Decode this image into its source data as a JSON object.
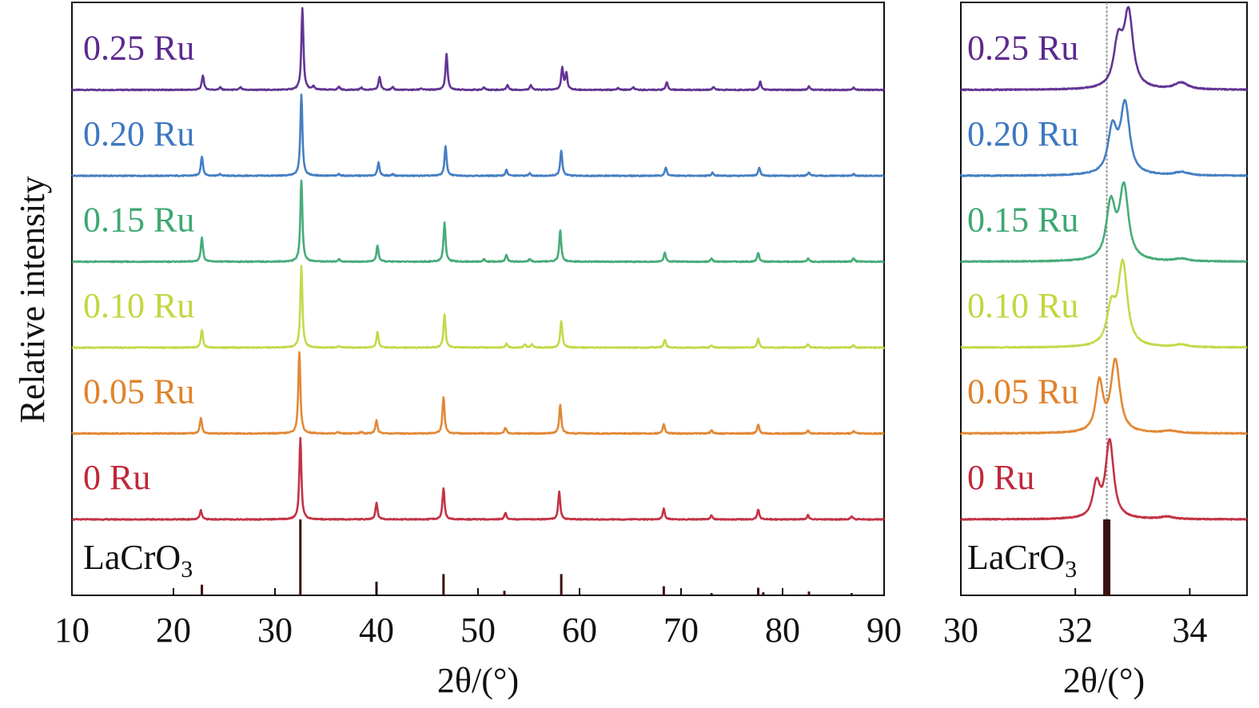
{
  "ylabel": "Relative intensity",
  "chart_data": [
    {
      "type": "line",
      "panel": "full-range",
      "xlabel": "2θ/(°)",
      "ylabel": "Relative intensity",
      "xlim": [
        10,
        90
      ],
      "xticks": [
        10,
        20,
        30,
        40,
        50,
        60,
        70,
        80,
        90
      ],
      "grid": false,
      "series": [
        {
          "name": "0.25 Ru",
          "color": "#5B2A8E",
          "peaks": [
            [
              22.9,
              0.18
            ],
            [
              24.6,
              0.03
            ],
            [
              26.6,
              0.03
            ],
            [
              32.7,
              1.0
            ],
            [
              33.8,
              0.04
            ],
            [
              36.3,
              0.04
            ],
            [
              38.5,
              0.03
            ],
            [
              40.3,
              0.16
            ],
            [
              41.6,
              0.03
            ],
            [
              44.4,
              0.02
            ],
            [
              46.9,
              0.44
            ],
            [
              50.6,
              0.03
            ],
            [
              52.9,
              0.06
            ],
            [
              55.2,
              0.06
            ],
            [
              58.3,
              0.27
            ],
            [
              58.7,
              0.2
            ],
            [
              63.8,
              0.02
            ],
            [
              65.3,
              0.03
            ],
            [
              68.6,
              0.09
            ],
            [
              73.2,
              0.04
            ],
            [
              77.8,
              0.1
            ],
            [
              82.6,
              0.04
            ],
            [
              87.0,
              0.03
            ]
          ]
        },
        {
          "name": "0.20 Ru",
          "color": "#3C78C0",
          "peaks": [
            [
              22.8,
              0.24
            ],
            [
              24.6,
              0.02
            ],
            [
              32.6,
              1.0
            ],
            [
              36.3,
              0.02
            ],
            [
              40.2,
              0.16
            ],
            [
              41.6,
              0.02
            ],
            [
              46.8,
              0.36
            ],
            [
              52.8,
              0.07
            ],
            [
              55.1,
              0.03
            ],
            [
              58.2,
              0.31
            ],
            [
              68.5,
              0.1
            ],
            [
              73.1,
              0.04
            ],
            [
              77.7,
              0.1
            ],
            [
              82.6,
              0.04
            ],
            [
              87.0,
              0.02
            ]
          ]
        },
        {
          "name": "0.15 Ru",
          "color": "#3DA872",
          "peaks": [
            [
              22.8,
              0.3
            ],
            [
              32.6,
              1.0
            ],
            [
              36.3,
              0.03
            ],
            [
              40.1,
              0.2
            ],
            [
              46.7,
              0.48
            ],
            [
              50.6,
              0.03
            ],
            [
              52.8,
              0.08
            ],
            [
              55.1,
              0.03
            ],
            [
              58.1,
              0.38
            ],
            [
              68.4,
              0.11
            ],
            [
              73.0,
              0.04
            ],
            [
              77.6,
              0.11
            ],
            [
              82.5,
              0.04
            ],
            [
              87.0,
              0.04
            ]
          ]
        },
        {
          "name": "0.10 Ru",
          "color": "#C3D640",
          "peaks": [
            [
              22.8,
              0.22
            ],
            [
              32.6,
              1.0
            ],
            [
              36.3,
              0.02
            ],
            [
              40.1,
              0.19
            ],
            [
              46.7,
              0.41
            ],
            [
              52.8,
              0.05
            ],
            [
              54.6,
              0.04
            ],
            [
              55.3,
              0.04
            ],
            [
              58.2,
              0.33
            ],
            [
              68.4,
              0.1
            ],
            [
              73.0,
              0.03
            ],
            [
              77.6,
              0.11
            ],
            [
              82.5,
              0.04
            ],
            [
              87.0,
              0.03
            ]
          ]
        },
        {
          "name": "0.05 Ru",
          "color": "#E0822A",
          "peaks": [
            [
              22.7,
              0.19
            ],
            [
              32.4,
              1.0
            ],
            [
              36.2,
              0.02
            ],
            [
              38.5,
              0.02
            ],
            [
              40.0,
              0.16
            ],
            [
              46.6,
              0.45
            ],
            [
              52.7,
              0.07
            ],
            [
              58.1,
              0.35
            ],
            [
              68.3,
              0.12
            ],
            [
              73.0,
              0.04
            ],
            [
              77.6,
              0.11
            ],
            [
              82.5,
              0.04
            ],
            [
              87.0,
              0.03
            ]
          ]
        },
        {
          "name": "0 Ru",
          "color": "#C0283A",
          "peaks": [
            [
              22.7,
              0.11
            ],
            [
              32.5,
              1.0
            ],
            [
              40.0,
              0.2
            ],
            [
              46.6,
              0.38
            ],
            [
              52.7,
              0.08
            ],
            [
              58.0,
              0.34
            ],
            [
              68.3,
              0.13
            ],
            [
              73.0,
              0.05
            ],
            [
              77.6,
              0.12
            ],
            [
              82.5,
              0.05
            ],
            [
              86.8,
              0.04
            ]
          ]
        }
      ],
      "reference": {
        "name": "LaCrO3",
        "label_main": "LaCrO",
        "label_sub": "3",
        "color": "#3A1010",
        "sticks": [
          [
            22.8,
            0.14
          ],
          [
            32.5,
            1.0
          ],
          [
            40.0,
            0.18
          ],
          [
            46.6,
            0.28
          ],
          [
            52.6,
            0.06
          ],
          [
            58.2,
            0.28
          ],
          [
            68.3,
            0.12
          ],
          [
            73.0,
            0.03
          ],
          [
            77.6,
            0.1
          ],
          [
            78.1,
            0.04
          ],
          [
            82.6,
            0.05
          ],
          [
            86.8,
            0.03
          ]
        ]
      }
    },
    {
      "type": "line",
      "panel": "zoom",
      "xlabel": "2θ/(°)",
      "xlim": [
        30,
        35
      ],
      "xticks": [
        30,
        32,
        34
      ],
      "grid": false,
      "guide_line_x": 32.55,
      "series": [
        {
          "name": "0.25 Ru",
          "color": "#5B2A8E",
          "peaks": [
            [
              32.75,
              0.55,
              0.1
            ],
            [
              32.93,
              0.9,
              0.1
            ],
            [
              33.85,
              0.08,
              0.15
            ]
          ]
        },
        {
          "name": "0.20 Ru",
          "color": "#3C78C0",
          "peaks": [
            [
              32.65,
              0.55,
              0.1
            ],
            [
              32.87,
              0.85,
              0.1
            ],
            [
              33.85,
              0.04,
              0.15
            ]
          ]
        },
        {
          "name": "0.15 Ru",
          "color": "#3DA872",
          "peaks": [
            [
              32.62,
              0.68,
              0.1
            ],
            [
              32.85,
              0.88,
              0.1
            ],
            [
              33.85,
              0.03,
              0.15
            ]
          ]
        },
        {
          "name": "0.10 Ru",
          "color": "#C3D640",
          "peaks": [
            [
              32.63,
              0.45,
              0.1
            ],
            [
              32.83,
              1.0,
              0.1
            ],
            [
              33.85,
              0.03,
              0.15
            ]
          ]
        },
        {
          "name": "0.05 Ru",
          "color": "#E0822A",
          "peaks": [
            [
              32.42,
              0.6,
              0.08
            ],
            [
              32.7,
              0.88,
              0.1
            ],
            [
              33.65,
              0.03,
              0.15
            ]
          ]
        },
        {
          "name": "0 Ru",
          "color": "#C0283A",
          "peaks": [
            [
              32.37,
              0.4,
              0.08
            ],
            [
              32.6,
              0.95,
              0.09
            ],
            [
              33.6,
              0.03,
              0.15
            ]
          ]
        }
      ],
      "reference": {
        "name": "LaCrO3",
        "label_main": "LaCrO",
        "label_sub": "3",
        "color": "#3A1010",
        "sticks": [
          [
            32.55,
            1.0
          ]
        ]
      }
    }
  ]
}
